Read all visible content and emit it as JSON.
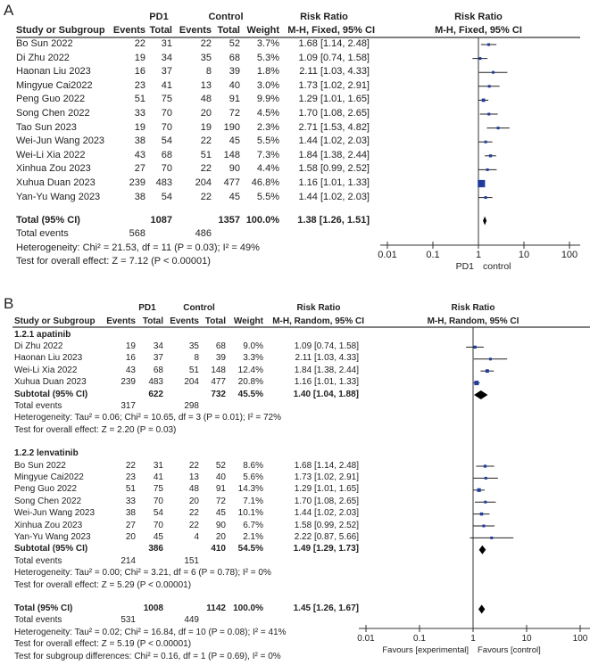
{
  "colors": {
    "square": "#1f3c9e",
    "line": "#222222",
    "diamond": "#000000"
  },
  "chart_data": [
    {
      "type": "forest",
      "panel": "A",
      "header": {
        "group1": "PD1",
        "group2": "Control",
        "effect": "Risk Ratio",
        "study_col": "Study or Subgroup",
        "events": "Events",
        "total": "Total",
        "weight": "Weight",
        "method": "M-H, Fixed, 95% CI",
        "plot_title": "Risk Ratio",
        "plot_method": "M-H, Fixed, 95% CI"
      },
      "rows": [
        {
          "kind": "study",
          "study": "Bo Sun 2022",
          "e1": 22,
          "n1": 31,
          "e2": 22,
          "n2": 52,
          "weight": "3.7%",
          "rr": 1.68,
          "lo": 1.14,
          "hi": 2.48
        },
        {
          "kind": "study",
          "study": "Di Zhu 2022",
          "e1": 19,
          "n1": 34,
          "e2": 35,
          "n2": 68,
          "weight": "5.3%",
          "rr": 1.09,
          "lo": 0.74,
          "hi": 1.58
        },
        {
          "kind": "study",
          "study": "Haonan Liu 2023",
          "e1": 16,
          "n1": 37,
          "e2": 8,
          "n2": 39,
          "weight": "1.8%",
          "rr": 2.11,
          "lo": 1.03,
          "hi": 4.33
        },
        {
          "kind": "study",
          "study": "Mingyue Cai2022",
          "e1": 23,
          "n1": 41,
          "e2": 13,
          "n2": 40,
          "weight": "3.0%",
          "rr": 1.73,
          "lo": 1.02,
          "hi": 2.91
        },
        {
          "kind": "study",
          "study": "Peng Guo 2022",
          "e1": 51,
          "n1": 75,
          "e2": 48,
          "n2": 91,
          "weight": "9.9%",
          "rr": 1.29,
          "lo": 1.01,
          "hi": 1.65
        },
        {
          "kind": "study",
          "study": "Song Chen 2022",
          "e1": 33,
          "n1": 70,
          "e2": 20,
          "n2": 72,
          "weight": "4.5%",
          "rr": 1.7,
          "lo": 1.08,
          "hi": 2.65
        },
        {
          "kind": "study",
          "study": "Tao Sun 2023",
          "e1": 19,
          "n1": 70,
          "e2": 19,
          "n2": 190,
          "weight": "2.3%",
          "rr": 2.71,
          "lo": 1.53,
          "hi": 4.82
        },
        {
          "kind": "study",
          "study": "Wei-Jun Wang 2023",
          "e1": 38,
          "n1": 54,
          "e2": 22,
          "n2": 45,
          "weight": "5.5%",
          "rr": 1.44,
          "lo": 1.02,
          "hi": 2.03
        },
        {
          "kind": "study",
          "study": "Wei-Li Xia 2022",
          "e1": 43,
          "n1": 68,
          "e2": 51,
          "n2": 148,
          "weight": "7.3%",
          "rr": 1.84,
          "lo": 1.38,
          "hi": 2.44
        },
        {
          "kind": "study",
          "study": "Xinhua Zou 2023",
          "e1": 27,
          "n1": 70,
          "e2": 22,
          "n2": 90,
          "weight": "4.4%",
          "rr": 1.58,
          "lo": 0.99,
          "hi": 2.52
        },
        {
          "kind": "study",
          "study": "Xuhua Duan 2023",
          "e1": 239,
          "n1": 483,
          "e2": 204,
          "n2": 477,
          "weight": "46.8%",
          "rr": 1.16,
          "lo": 1.01,
          "hi": 1.33
        },
        {
          "kind": "study",
          "study": "Yan-Yu Wang 2023",
          "e1": 38,
          "n1": 54,
          "e2": 22,
          "n2": 45,
          "weight": "5.5%",
          "rr": 1.44,
          "lo": 1.02,
          "hi": 2.03
        },
        {
          "kind": "blank"
        },
        {
          "kind": "total",
          "study": "Total (95% CI)",
          "n1": 1087,
          "n2": 1357,
          "weight": "100.0%",
          "rr": 1.38,
          "lo": 1.26,
          "hi": 1.51
        },
        {
          "kind": "events",
          "study": "Total events",
          "e1": 568,
          "e2": 486
        },
        {
          "kind": "text",
          "study": "Heterogeneity: Chi² = 21.53, df = 11 (P = 0.03); I² = 49%"
        },
        {
          "kind": "text",
          "study": "Test for overall effect: Z = 7.12 (P < 0.00001)"
        }
      ],
      "axis": {
        "scale": "log",
        "ticks": [
          0.01,
          0.1,
          1,
          10,
          100
        ],
        "tick_labels": [
          "0.01",
          "0.1",
          "1",
          "10",
          "100"
        ],
        "left_label": "PD1",
        "right_label": "control"
      }
    },
    {
      "type": "forest",
      "panel": "B",
      "header": {
        "group1": "PD1",
        "group2": "Control",
        "effect": "Risk Ratio",
        "study_col": "Study or Subgroup",
        "events": "Events",
        "total": "Total",
        "weight": "Weight",
        "method": "M-H, Random, 95% CI",
        "plot_title": "Risk Ratio",
        "plot_method": "M-H, Random, 95% CI"
      },
      "rows": [
        {
          "kind": "heading",
          "study": "1.2.1 apatinib"
        },
        {
          "kind": "study",
          "study": "Di Zhu 2022",
          "e1": 19,
          "n1": 34,
          "e2": 35,
          "n2": 68,
          "weight": "9.0%",
          "rr": 1.09,
          "lo": 0.74,
          "hi": 1.58
        },
        {
          "kind": "study",
          "study": "Haonan Liu 2023",
          "e1": 16,
          "n1": 37,
          "e2": 8,
          "n2": 39,
          "weight": "3.3%",
          "rr": 2.11,
          "lo": 1.03,
          "hi": 4.33
        },
        {
          "kind": "study",
          "study": "Wei-Li Xia 2022",
          "e1": 43,
          "n1": 68,
          "e2": 51,
          "n2": 148,
          "weight": "12.4%",
          "rr": 1.84,
          "lo": 1.38,
          "hi": 2.44
        },
        {
          "kind": "study",
          "study": "Xuhua Duan 2023",
          "e1": 239,
          "n1": 483,
          "e2": 204,
          "n2": 477,
          "weight": "20.8%",
          "rr": 1.16,
          "lo": 1.01,
          "hi": 1.33
        },
        {
          "kind": "subtotal",
          "study": "Subtotal (95% CI)",
          "n1": 622,
          "n2": 732,
          "weight": "45.5%",
          "rr": 1.4,
          "lo": 1.04,
          "hi": 1.88
        },
        {
          "kind": "events",
          "study": "Total events",
          "e1": 317,
          "e2": 298
        },
        {
          "kind": "text",
          "study": "Heterogeneity: Tau² = 0.06; Chi² = 10.65, df = 3 (P = 0.01); I² = 72%"
        },
        {
          "kind": "text",
          "study": "Test for overall effect: Z = 2.20 (P = 0.03)"
        },
        {
          "kind": "blank"
        },
        {
          "kind": "heading",
          "study": "1.2.2 lenvatinib"
        },
        {
          "kind": "study",
          "study": "Bo Sun 2022",
          "e1": 22,
          "n1": 31,
          "e2": 22,
          "n2": 52,
          "weight": "8.6%",
          "rr": 1.68,
          "lo": 1.14,
          "hi": 2.48
        },
        {
          "kind": "study",
          "study": "Mingyue Cai2022",
          "e1": 23,
          "n1": 41,
          "e2": 13,
          "n2": 40,
          "weight": "5.6%",
          "rr": 1.73,
          "lo": 1.02,
          "hi": 2.91
        },
        {
          "kind": "study",
          "study": "Peng Guo 2022",
          "e1": 51,
          "n1": 75,
          "e2": 48,
          "n2": 91,
          "weight": "14.3%",
          "rr": 1.29,
          "lo": 1.01,
          "hi": 1.65
        },
        {
          "kind": "study",
          "study": "Song Chen 2022",
          "e1": 33,
          "n1": 70,
          "e2": 20,
          "n2": 72,
          "weight": "7.1%",
          "rr": 1.7,
          "lo": 1.08,
          "hi": 2.65
        },
        {
          "kind": "study",
          "study": "Wei-Jun Wang 2023",
          "e1": 38,
          "n1": 54,
          "e2": 22,
          "n2": 45,
          "weight": "10.1%",
          "rr": 1.44,
          "lo": 1.02,
          "hi": 2.03
        },
        {
          "kind": "study",
          "study": "Xinhua Zou 2023",
          "e1": 27,
          "n1": 70,
          "e2": 22,
          "n2": 90,
          "weight": "6.7%",
          "rr": 1.58,
          "lo": 0.99,
          "hi": 2.52
        },
        {
          "kind": "study",
          "study": "Yan-Yu Wang 2023",
          "e1": 20,
          "n1": 45,
          "e2": 4,
          "n2": 20,
          "weight": "2.1%",
          "rr": 2.22,
          "lo": 0.87,
          "hi": 5.66
        },
        {
          "kind": "subtotal",
          "study": "Subtotal (95% CI)",
          "n1": 386,
          "n2": 410,
          "weight": "54.5%",
          "rr": 1.49,
          "lo": 1.29,
          "hi": 1.73
        },
        {
          "kind": "events",
          "study": "Total events",
          "e1": 214,
          "e2": 151
        },
        {
          "kind": "text",
          "study": "Heterogeneity: Tau² = 0.00; Chi² = 3.21, df = 6 (P = 0.78); I² = 0%"
        },
        {
          "kind": "text",
          "study": "Test for overall effect: Z = 5.29 (P < 0.00001)"
        },
        {
          "kind": "blank"
        },
        {
          "kind": "total",
          "study": "Total (95% CI)",
          "n1": 1008,
          "n2": 1142,
          "weight": "100.0%",
          "rr": 1.45,
          "lo": 1.26,
          "hi": 1.67
        },
        {
          "kind": "events",
          "study": "Total events",
          "e1": 531,
          "e2": 449
        },
        {
          "kind": "text",
          "study": "Heterogeneity: Tau² = 0.02; Chi² = 16.84, df = 10 (P = 0.08); I² = 41%"
        },
        {
          "kind": "text",
          "study": "Test for overall effect: Z = 5.19 (P < 0.00001)"
        },
        {
          "kind": "text",
          "study": "Test for subgroup differences: Chi² = 0.16, df = 1 (P = 0.69), I² = 0%"
        }
      ],
      "axis": {
        "scale": "log",
        "ticks": [
          0.01,
          0.1,
          1,
          10,
          100
        ],
        "tick_labels": [
          "0.01",
          "0.1",
          "1",
          "10",
          "100"
        ],
        "left_label": "Favours [experimental]",
        "right_label": "Favours [control]"
      }
    }
  ]
}
